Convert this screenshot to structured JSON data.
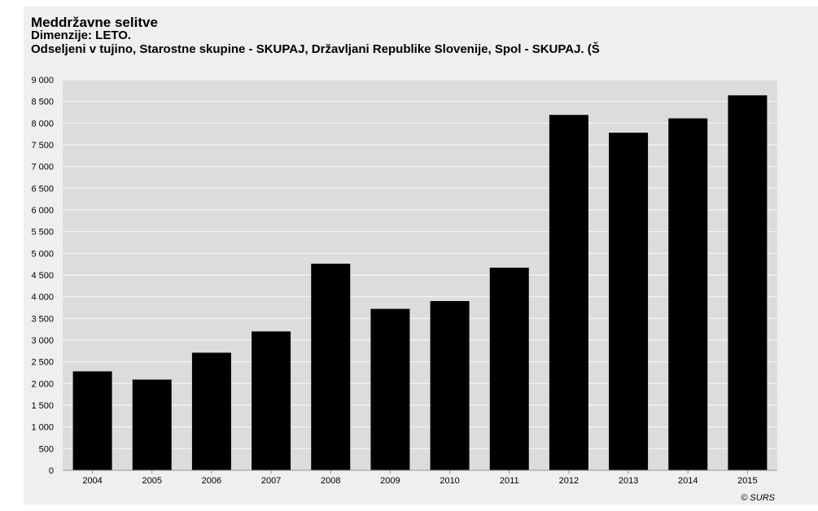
{
  "colors": {
    "page_background": "#ffffff",
    "panel_background": "#efefef",
    "plot_background": "#dcdcdc",
    "gridline": "#f5f5f5",
    "bar": "#000000",
    "text": "#000000"
  },
  "chart_data": {
    "type": "bar",
    "title": "Meddržavne selitve",
    "subtitle": "Dimenzije: LETO.",
    "subtitle2": "Odseljeni v tujino, Starostne skupine - SKUPAJ, Državljani Republike Slovenije, Spol - SKUPAJ. (Š",
    "xlabel": "",
    "ylabel": "",
    "categories": [
      "2004",
      "2005",
      "2006",
      "2007",
      "2008",
      "2009",
      "2010",
      "2011",
      "2012",
      "2013",
      "2014",
      "2015"
    ],
    "values": [
      2280,
      2090,
      2710,
      3200,
      4760,
      3720,
      3900,
      4670,
      8190,
      7780,
      8110,
      8640
    ],
    "ylim": [
      0,
      9000
    ],
    "ytick_step": 500,
    "ytick_labels": [
      "0",
      "500",
      "1 000",
      "1 500",
      "2 000",
      "2 500",
      "3 000",
      "3 500",
      "4 000",
      "4 500",
      "5 000",
      "5 500",
      "6 000",
      "6 500",
      "7 000",
      "7 500",
      "8 000",
      "8 500",
      "9 000"
    ],
    "grid": true,
    "legend": "none",
    "credit": "© SURS"
  }
}
